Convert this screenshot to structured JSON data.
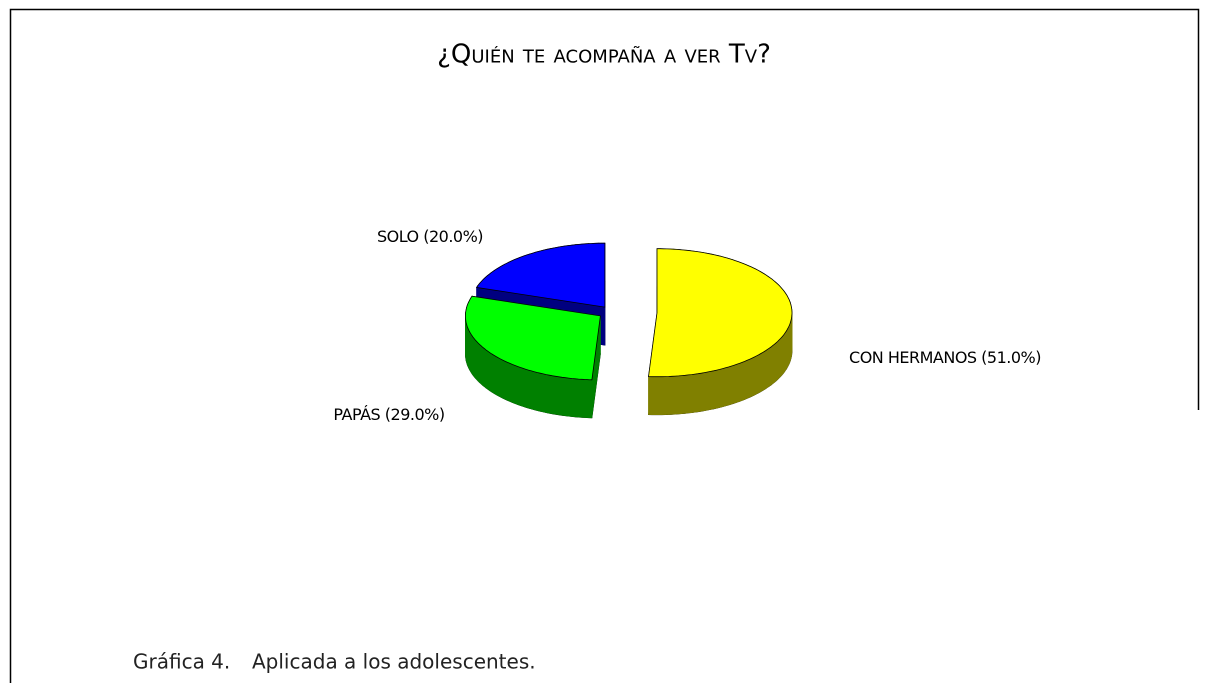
{
  "chart_data": {
    "type": "pie3d",
    "title": "¿Quién te acompaña a ver Tv?",
    "categories": [
      "CON HERMANOS",
      "PAPÁS",
      "SOLO"
    ],
    "values": [
      51,
      29,
      20
    ],
    "value_labels": [
      "51.0%",
      "29.0%",
      "20.0%"
    ],
    "colors": [
      "#ffff00",
      "#00ff00",
      "#0000ff"
    ]
  },
  "caption": {
    "number": "Gráfica 4.",
    "text": "Aplicada a los adolescentes."
  }
}
